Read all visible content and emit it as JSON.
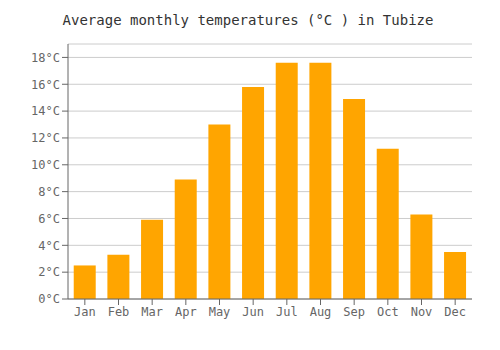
{
  "chart_data": {
    "type": "bar",
    "title": "Average monthly temperatures (°C ) in Tubize",
    "categories": [
      "Jan",
      "Feb",
      "Mar",
      "Apr",
      "May",
      "Jun",
      "Jul",
      "Aug",
      "Sep",
      "Oct",
      "Nov",
      "Dec"
    ],
    "values": [
      2.5,
      3.3,
      5.9,
      8.9,
      13.0,
      15.8,
      17.6,
      17.6,
      14.9,
      11.2,
      6.3,
      3.5
    ],
    "color": "#FFA500",
    "ylim": [
      0,
      19
    ],
    "yticks": [
      {
        "value": 0,
        "label": "0°C"
      },
      {
        "value": 2,
        "label": "2°C"
      },
      {
        "value": 4,
        "label": "4°C"
      },
      {
        "value": 6,
        "label": "6°C"
      },
      {
        "value": 8,
        "label": "8°C"
      },
      {
        "value": 10,
        "label": "10°C"
      },
      {
        "value": 12,
        "label": "12°C"
      },
      {
        "value": 14,
        "label": "14°C"
      },
      {
        "value": 16,
        "label": "16°C"
      },
      {
        "value": 18,
        "label": "18°C"
      }
    ],
    "grid": true
  }
}
